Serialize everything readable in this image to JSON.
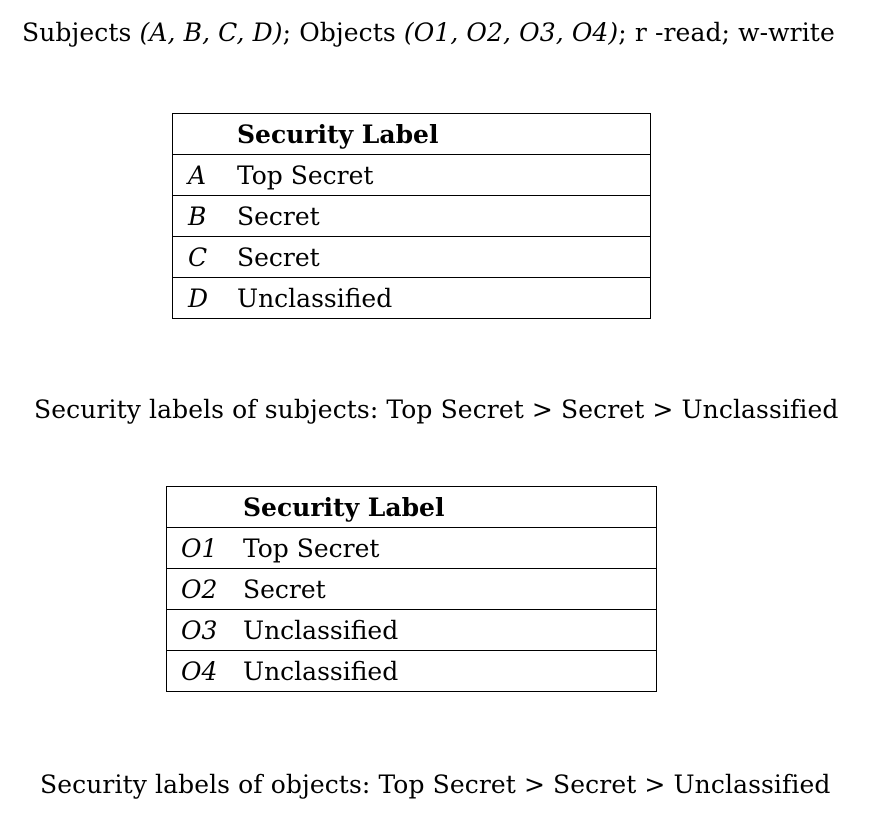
{
  "header_line": {
    "prefix": "Subjects ",
    "subjects_math": "(A, B, C, D)",
    "middle": "; Objects ",
    "objects_math": "(O1, O2, O3, O4)",
    "suffix": "; r -read; w-write"
  },
  "subjects_table": {
    "header": "Security Label",
    "rows": [
      {
        "key": "A",
        "label": "Top Secret"
      },
      {
        "key": "B",
        "label": "Secret"
      },
      {
        "key": "C",
        "label": "Secret"
      },
      {
        "key": "D",
        "label": "Unclassified"
      }
    ]
  },
  "subjects_ordering": "Security labels of subjects: Top Secret > Secret > Unclassified",
  "objects_table": {
    "header": "Security Label",
    "rows": [
      {
        "key": "O1",
        "label": "Top Secret"
      },
      {
        "key": "O2",
        "label": "Secret"
      },
      {
        "key": "O3",
        "label": "Unclassified"
      },
      {
        "key": "O4",
        "label": "Unclassified"
      }
    ]
  },
  "objects_ordering": "Security labels of objects: Top Secret > Secret > Unclassified"
}
